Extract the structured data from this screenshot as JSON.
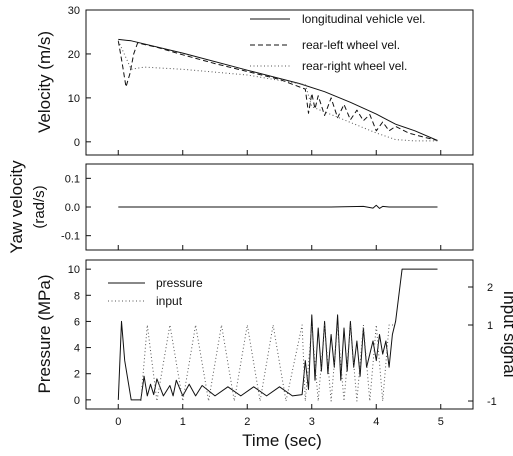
{
  "chart_data": [
    {
      "type": "line",
      "ylabel": "Velocity (m/s)",
      "xlim": [
        -0.5,
        5.5
      ],
      "ylim": [
        -3,
        30
      ],
      "yticks": [
        "0",
        "10",
        "20",
        "30"
      ],
      "legend_position": "top-right",
      "series": [
        {
          "name": "longitudinal vehicle vel.",
          "style": "solid",
          "x": [
            0,
            0.2,
            1,
            2,
            2.8,
            3.2,
            3.6,
            4.0,
            4.3,
            4.6,
            4.95
          ],
          "y": [
            23.3,
            23.0,
            20.2,
            16.3,
            13.3,
            11.4,
            9.0,
            6.3,
            4.0,
            2.5,
            0.3
          ]
        },
        {
          "name": "rear-left wheel vel.",
          "style": "dashed",
          "x": [
            0,
            0.06,
            0.12,
            0.18,
            0.24,
            0.3,
            0.6,
            1.0,
            1.5,
            2.0,
            2.5,
            2.9,
            2.95,
            3.0,
            3.05,
            3.1,
            3.2,
            3.3,
            3.4,
            3.5,
            3.6,
            3.7,
            3.8,
            3.9,
            4.0,
            4.1,
            4.2,
            4.3,
            4.5,
            4.7,
            4.95
          ],
          "y": [
            23.0,
            18.0,
            12.5,
            15.5,
            20.0,
            22.5,
            21.5,
            19.8,
            17.8,
            16.0,
            14.2,
            12.0,
            6.5,
            11.0,
            7.5,
            10.5,
            6.0,
            10.0,
            5.5,
            8.5,
            5.0,
            7.2,
            4.8,
            6.2,
            2.5,
            4.5,
            2.5,
            3.5,
            2.0,
            1.2,
            0.3
          ]
        },
        {
          "name": "rear-right wheel vel.",
          "style": "dotted",
          "x": [
            0,
            0.2,
            0.4,
            1.0,
            2.0,
            2.9,
            3.0,
            3.5,
            4.0,
            4.3,
            4.6,
            4.95
          ],
          "y": [
            23.0,
            16.5,
            17.0,
            16.5,
            15.2,
            13.0,
            8.0,
            5.0,
            2.0,
            0.5,
            0.2,
            0.2
          ]
        }
      ]
    },
    {
      "type": "line",
      "ylabel": "Yaw velocity (rad/s)",
      "xlim": [
        -0.5,
        5.5
      ],
      "ylim": [
        -0.15,
        0.15
      ],
      "yticks": [
        "-0.1",
        "0.0",
        "0.1"
      ],
      "series": [
        {
          "x": [
            0,
            0.5,
            1.0,
            2.0,
            2.9,
            3.3,
            3.8,
            3.95,
            4.0,
            4.05,
            4.1,
            4.2,
            4.5,
            4.95
          ],
          "y": [
            0,
            0,
            0,
            0,
            0,
            0,
            0.002,
            -0.004,
            0.006,
            -0.005,
            0.002,
            0,
            0,
            0
          ]
        }
      ]
    },
    {
      "type": "line",
      "ylabel": "Pressure (MPa)",
      "y2label": "Input signal",
      "xlabel": "Time (sec)",
      "xlim": [
        -0.5,
        5.5
      ],
      "ylim": [
        -0.7,
        10.7
      ],
      "y2lim": [
        -1.21,
        2.71
      ],
      "xticks": [
        "0",
        "1",
        "2",
        "3",
        "4",
        "5"
      ],
      "yticks": [
        "0",
        "2",
        "4",
        "6",
        "8",
        "10"
      ],
      "y2ticks": [
        "-1",
        "1",
        "2"
      ],
      "legend_position": "top-left",
      "series": [
        {
          "name": "pressure",
          "style": "solid",
          "axis": "left",
          "x": [
            0,
            0.05,
            0.1,
            0.2,
            0.35,
            0.4,
            0.45,
            0.5,
            0.55,
            0.6,
            0.7,
            0.8,
            0.85,
            0.9,
            1.0,
            1.1,
            1.2,
            1.3,
            1.5,
            1.7,
            1.9,
            2.1,
            2.3,
            2.5,
            2.7,
            2.85,
            2.9,
            2.95,
            3.0,
            3.05,
            3.1,
            3.15,
            3.2,
            3.25,
            3.3,
            3.35,
            3.4,
            3.45,
            3.5,
            3.55,
            3.6,
            3.65,
            3.7,
            3.75,
            3.8,
            3.85,
            3.9,
            3.95,
            4.0,
            4.05,
            4.1,
            4.15,
            4.2,
            4.25,
            4.3,
            4.4,
            4.5,
            4.7,
            4.95
          ],
          "y": [
            0,
            6.0,
            3.0,
            0,
            0,
            1.8,
            0.3,
            1.2,
            0.4,
            1.6,
            0.3,
            1.1,
            0.3,
            1.5,
            0.3,
            1.2,
            0.3,
            1.1,
            0.3,
            1.0,
            0.3,
            1.0,
            0.3,
            1.0,
            0.3,
            0.4,
            3.0,
            0.8,
            6.5,
            1.5,
            5.5,
            2.2,
            6.0,
            2.0,
            5.0,
            2.5,
            6.5,
            1.5,
            5.5,
            2.2,
            6.0,
            2.5,
            4.5,
            1.8,
            5.5,
            2.5,
            3.5,
            4.5,
            3.0,
            5.0,
            3.5,
            4.5,
            2.5,
            5.0,
            6.0,
            10.0,
            10.0,
            10.0,
            10.0
          ]
        },
        {
          "name": "input",
          "style": "dotted",
          "axis": "right",
          "x": [
            0.35,
            0.45,
            0.6,
            0.8,
            1.0,
            1.2,
            1.4,
            1.6,
            1.8,
            2.0,
            2.2,
            2.4,
            2.6,
            2.85,
            2.9,
            3.0,
            3.1,
            3.2,
            3.3,
            3.4,
            3.5,
            3.6,
            3.7,
            3.8,
            3.9,
            4.0,
            4.1,
            4.2,
            4.3
          ],
          "y": [
            -1,
            1,
            -1,
            1,
            -1,
            1,
            -1,
            1,
            -1,
            1,
            -1,
            1,
            -1,
            1,
            -1,
            1,
            -1,
            1,
            -1,
            1,
            -1,
            1,
            -1,
            1,
            -1,
            1,
            -1,
            1,
            1
          ]
        }
      ]
    }
  ]
}
